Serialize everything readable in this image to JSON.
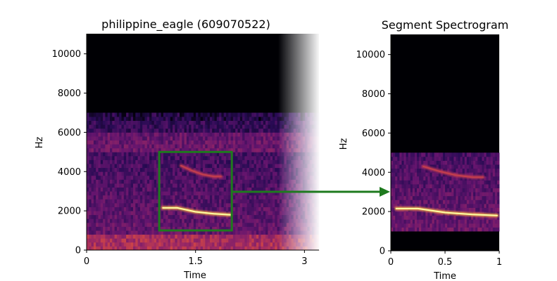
{
  "chart_data": [
    {
      "type": "heatmap",
      "title": "philippine_eagle (609070522)",
      "xlabel": "Time",
      "ylabel": "Hz",
      "xlim": [
        0,
        3.2
      ],
      "ylim": [
        0,
        11025
      ],
      "x_ticks": [
        {
          "value": 0,
          "label": "0"
        },
        {
          "value": 1.5,
          "label": "1.5"
        },
        {
          "value": 3,
          "label": "3"
        }
      ],
      "y_ticks": [
        {
          "value": 0,
          "label": "0"
        },
        {
          "value": 2000,
          "label": "2000"
        },
        {
          "value": 4000,
          "label": "4000"
        },
        {
          "value": 6000,
          "label": "6000"
        },
        {
          "value": 8000,
          "label": "8000"
        },
        {
          "value": 10000,
          "label": "10000"
        }
      ],
      "colormap": "magma",
      "fade_out_start_time": 2.7,
      "noise_ceiling_hz": 7000,
      "highlight_band_hz": [
        5000,
        5800
      ],
      "calls": [
        {
          "t": [
            1.05,
            1.25,
            1.5,
            1.75,
            1.98
          ],
          "f": [
            2150,
            2150,
            1950,
            1850,
            1800
          ],
          "strength": 1.0
        },
        {
          "t": [
            1.3,
            1.45,
            1.6,
            1.75,
            1.85
          ],
          "f": [
            4300,
            4050,
            3850,
            3750,
            3750
          ],
          "strength": 0.7
        }
      ],
      "selection_box": {
        "time": [
          1.0,
          2.0
        ],
        "freq": [
          1000,
          5000
        ],
        "color": "#1e7a1e"
      }
    },
    {
      "type": "heatmap",
      "title": "Segment Spectrogram",
      "xlabel": "Time",
      "ylabel": "Hz",
      "xlim": [
        0,
        1
      ],
      "ylim": [
        0,
        11025
      ],
      "x_ticks": [
        {
          "value": 0,
          "label": "0"
        },
        {
          "value": 0.5,
          "label": "0.5"
        },
        {
          "value": 1,
          "label": "1"
        }
      ],
      "y_ticks": [
        {
          "value": 0,
          "label": "0"
        },
        {
          "value": 2000,
          "label": "2000"
        },
        {
          "value": 4000,
          "label": "4000"
        },
        {
          "value": 6000,
          "label": "6000"
        },
        {
          "value": 8000,
          "label": "8000"
        },
        {
          "value": 10000,
          "label": "10000"
        }
      ],
      "colormap": "magma",
      "band_hz": [
        1000,
        5000
      ],
      "calls": [
        {
          "t": [
            0.05,
            0.25,
            0.5,
            0.75,
            0.98
          ],
          "f": [
            2150,
            2150,
            1950,
            1850,
            1800
          ],
          "strength": 1.0
        },
        {
          "t": [
            0.3,
            0.45,
            0.6,
            0.75,
            0.85
          ],
          "f": [
            4300,
            4050,
            3850,
            3750,
            3750
          ],
          "strength": 0.7
        }
      ]
    }
  ],
  "arrow_color": "#1e7a1e"
}
